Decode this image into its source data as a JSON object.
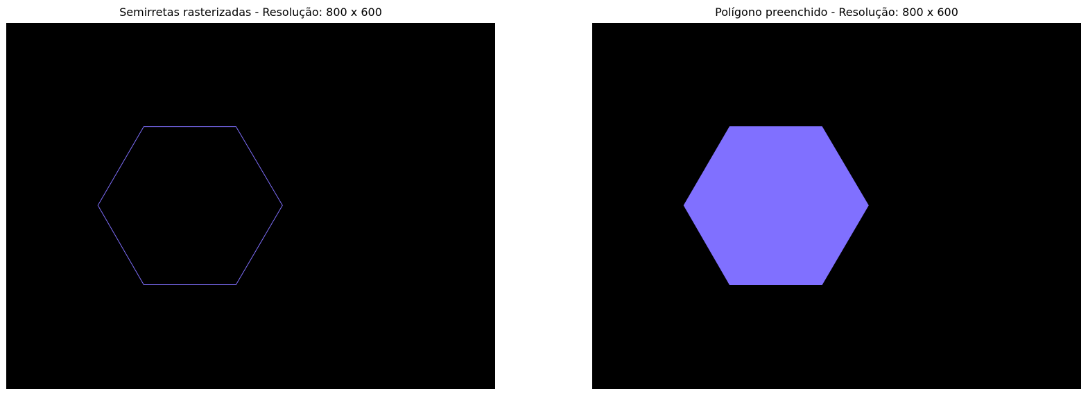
{
  "panels": [
    {
      "title": "Semirretas rasterizadas - Resolução: 800 x 600",
      "mode": "outline",
      "resolution": [
        800,
        600
      ],
      "hexagon_vertices": [
        [
          225,
          170
        ],
        [
          376,
          170
        ],
        [
          452,
          299
        ],
        [
          376,
          429
        ],
        [
          225,
          429
        ],
        [
          150,
          299
        ]
      ]
    },
    {
      "title": "Polígono preenchido - Resolução: 800 x 600",
      "mode": "filled",
      "resolution": [
        800,
        600
      ],
      "hexagon_vertices": [
        [
          225,
          170
        ],
        [
          376,
          170
        ],
        [
          452,
          299
        ],
        [
          376,
          429
        ],
        [
          225,
          429
        ],
        [
          150,
          299
        ]
      ]
    }
  ],
  "colors": {
    "background": "#000000",
    "shape": "#8070ff"
  }
}
